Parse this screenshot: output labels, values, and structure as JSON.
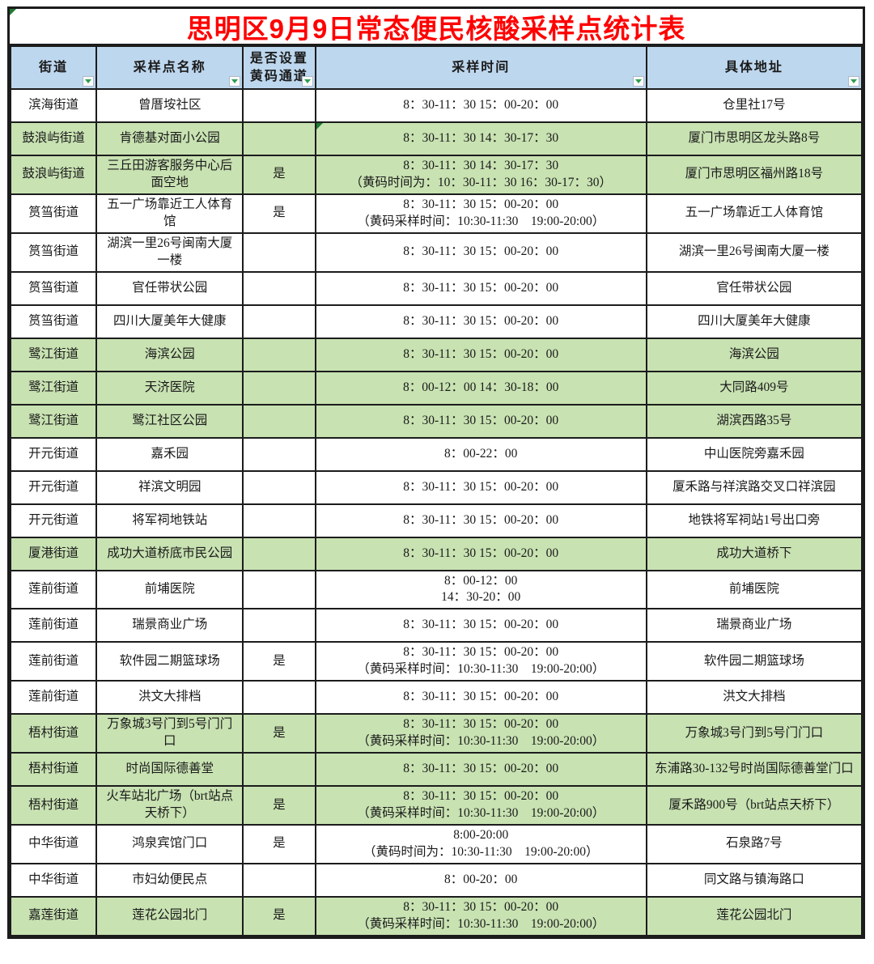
{
  "title": "思明区9月9日常态便民核酸采样点统计表",
  "colors": {
    "title_color": "#ff0000",
    "header_bg": "#bdd7ee",
    "highlight_bg": "#c8e2b2",
    "filter_green": "#2e9e50",
    "border": "#1c1c1c"
  },
  "columns": [
    {
      "label": "街道"
    },
    {
      "label": "采样点名称"
    },
    {
      "label": "是否设置黄码通道"
    },
    {
      "label": "采样时间"
    },
    {
      "label": "具体地址"
    }
  ],
  "rows": [
    {
      "street": "滨海街道",
      "site": "曾厝垵社区",
      "yellow_channel": "",
      "time": [
        "8：30-11：30 15：00-20：00"
      ],
      "address": "仓里社17号",
      "highlight": false,
      "error_marker": false
    },
    {
      "street": "鼓浪屿街道",
      "site": "肯德基对面小公园",
      "yellow_channel": "",
      "time": [
        "8：30-11：30 14：30-17：30"
      ],
      "address": "厦门市思明区龙头路8号",
      "highlight": true,
      "error_marker": true
    },
    {
      "street": "鼓浪屿街道",
      "site": "三丘田游客服务中心后面空地",
      "yellow_channel": "是",
      "time": [
        "8：30-11：30 14：30-17：30",
        "（黄码时间为：10：30-11：30 16：30-17：30）"
      ],
      "address": "厦门市思明区福州路18号",
      "highlight": true,
      "error_marker": false
    },
    {
      "street": "筼筜街道",
      "site": "五一广场靠近工人体育馆",
      "yellow_channel": "是",
      "time": [
        "8：30-11：30 15：00-20：00",
        "（黄码采样时间：10:30-11:30　19:00-20:00）"
      ],
      "address": "五一广场靠近工人体育馆",
      "highlight": false,
      "error_marker": false
    },
    {
      "street": "筼筜街道",
      "site": "湖滨一里26号闽南大厦一楼",
      "yellow_channel": "",
      "time": [
        "8：30-11：30 15：00-20：00"
      ],
      "address": "湖滨一里26号闽南大厦一楼",
      "highlight": false,
      "error_marker": false
    },
    {
      "street": "筼筜街道",
      "site": "官任带状公园",
      "yellow_channel": "",
      "time": [
        "8：30-11：30 15：00-20：00"
      ],
      "address": "官任带状公园",
      "highlight": false,
      "error_marker": false
    },
    {
      "street": "筼筜街道",
      "site": "四川大厦美年大健康",
      "yellow_channel": "",
      "time": [
        "8：30-11：30 15：00-20：00"
      ],
      "address": "四川大厦美年大健康",
      "highlight": false,
      "error_marker": false
    },
    {
      "street": "鹭江街道",
      "site": "海滨公园",
      "yellow_channel": "",
      "time": [
        "8：30-11：30 15：00-20：00"
      ],
      "address": "海滨公园",
      "highlight": true,
      "error_marker": false
    },
    {
      "street": "鹭江街道",
      "site": "天济医院",
      "yellow_channel": "",
      "time": [
        "8：00-12：00 14：30-18：00"
      ],
      "address": "大同路409号",
      "highlight": true,
      "error_marker": false
    },
    {
      "street": "鹭江街道",
      "site": "鹭江社区公园",
      "yellow_channel": "",
      "time": [
        "8：30-11：30 15：00-20：00"
      ],
      "address": "湖滨西路35号",
      "highlight": true,
      "error_marker": false
    },
    {
      "street": "开元街道",
      "site": "嘉禾园",
      "yellow_channel": "",
      "time": [
        "8：00-22：00"
      ],
      "address": "中山医院旁嘉禾园",
      "highlight": false,
      "error_marker": false
    },
    {
      "street": "开元街道",
      "site": "祥滨文明园",
      "yellow_channel": "",
      "time": [
        "8：30-11：30 15：00-20：00"
      ],
      "address": "厦禾路与祥滨路交叉口祥滨园",
      "highlight": false,
      "error_marker": false
    },
    {
      "street": "开元街道",
      "site": "将军祠地铁站",
      "yellow_channel": "",
      "time": [
        "8：30-11：30 15：00-20：00"
      ],
      "address": "地铁将军祠站1号出口旁",
      "highlight": false,
      "error_marker": false
    },
    {
      "street": "厦港街道",
      "site": "成功大道桥底市民公园",
      "yellow_channel": "",
      "time": [
        "8：30-11：30 15：00-20：00"
      ],
      "address": "成功大道桥下",
      "highlight": true,
      "error_marker": false
    },
    {
      "street": "莲前街道",
      "site": "前埔医院",
      "yellow_channel": "",
      "time": [
        "8：00-12：00",
        "14：30-20：00"
      ],
      "address": "前埔医院",
      "highlight": false,
      "error_marker": false
    },
    {
      "street": "莲前街道",
      "site": "瑞景商业广场",
      "yellow_channel": "",
      "time": [
        "8：30-11：30 15：00-20：00"
      ],
      "address": "瑞景商业广场",
      "highlight": false,
      "error_marker": false
    },
    {
      "street": "莲前街道",
      "site": "软件园二期篮球场",
      "yellow_channel": "是",
      "time": [
        "8：30-11：30 15：00-20：00",
        "（黄码采样时间：10:30-11:30　19:00-20:00）"
      ],
      "address": "软件园二期篮球场",
      "highlight": false,
      "error_marker": false
    },
    {
      "street": "莲前街道",
      "site": "洪文大排档",
      "yellow_channel": "",
      "time": [
        "8：30-11：30 15：00-20：00"
      ],
      "address": "洪文大排档",
      "highlight": false,
      "error_marker": false
    },
    {
      "street": "梧村街道",
      "site": "万象城3号门到5号门门口",
      "yellow_channel": "是",
      "time": [
        "8：30-11：30 15：00-20：00",
        "（黄码采样时间：10:30-11:30　19:00-20:00）"
      ],
      "address": "万象城3号门到5号门门口",
      "highlight": true,
      "error_marker": false
    },
    {
      "street": "梧村街道",
      "site": "时尚国际德善堂",
      "yellow_channel": "",
      "time": [
        "8：30-11：30 15：00-20：00"
      ],
      "address": "东浦路30-132号时尚国际德善堂门口",
      "highlight": true,
      "error_marker": false
    },
    {
      "street": "梧村街道",
      "site": "火车站北广场（brt站点天桥下）",
      "yellow_channel": "是",
      "time": [
        "8：30-11：30 15：00-20：00",
        "（黄码采样时间：10:30-11:30　19:00-20:00）"
      ],
      "address": "厦禾路900号（brt站点天桥下）",
      "highlight": true,
      "error_marker": false
    },
    {
      "street": "中华街道",
      "site": "鸿泉宾馆门口",
      "yellow_channel": "是",
      "time": [
        "8:00-20:00",
        "（黄码时间为：10:30-11:30　19:00-20:00）"
      ],
      "address": "石泉路7号",
      "highlight": false,
      "error_marker": false
    },
    {
      "street": "中华街道",
      "site": "市妇幼便民点",
      "yellow_channel": "",
      "time": [
        "8：00-20：00"
      ],
      "address": "同文路与镇海路口",
      "highlight": false,
      "error_marker": false
    },
    {
      "street": "嘉莲街道",
      "site": "莲花公园北门",
      "yellow_channel": "是",
      "time": [
        "8：30-11：30 15：00-20：00",
        "（黄码采样时间：10:30-11:30　19:00-20:00）"
      ],
      "address": "莲花公园北门",
      "highlight": true,
      "error_marker": false
    }
  ]
}
